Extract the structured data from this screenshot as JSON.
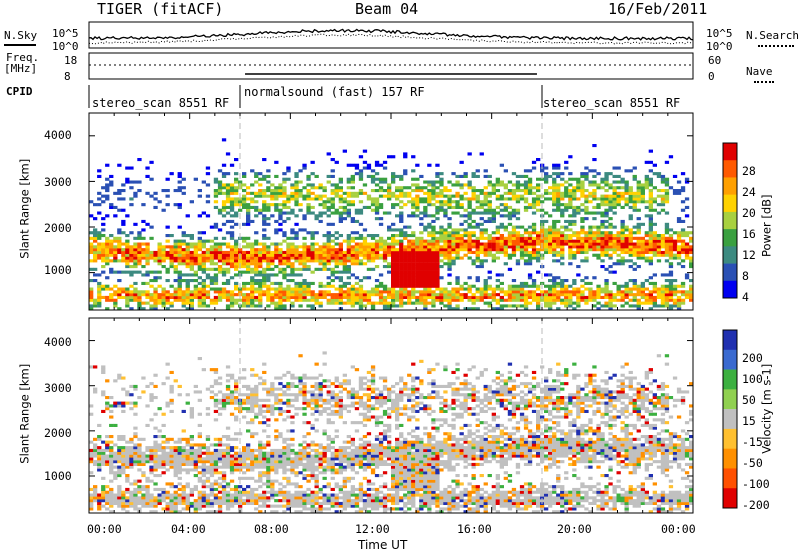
{
  "header": {
    "station": "TIGER (fitACF)",
    "beam": "Beam 04",
    "date": "16/Feb/2011"
  },
  "side_labels": {
    "nsky": "N.Sky",
    "nsearch": "N.Search",
    "freq": "Freq.",
    "freq_unit": "[MHz]",
    "nave": "Nave",
    "cpid": "CPID",
    "nsky_ticks": [
      "10^5",
      "10^0"
    ],
    "nsearch_ticks": [
      "10^5",
      "10^0"
    ],
    "freq_ticks": [
      "18",
      "8"
    ],
    "nave_ticks": [
      "60",
      "0"
    ]
  },
  "cpid_segments": [
    {
      "label": "stereo_scan 8551 RF",
      "start_hour": 0,
      "end_hour": 6
    },
    {
      "label": "normalsound (fast) 157 RF",
      "start_hour": 6,
      "end_hour": 18
    },
    {
      "label": "stereo_scan 8551 RF",
      "start_hour": 18,
      "end_hour": 24
    }
  ],
  "chart_data": [
    {
      "type": "heatmap",
      "name": "power",
      "ylabel": "Slant Range [km]",
      "xlabel": "",
      "xlim": [
        0,
        24
      ],
      "ylim": [
        180,
        4500
      ],
      "yticks": [
        "1000",
        "2000",
        "3000",
        "4000"
      ],
      "colorbar": {
        "label": "Power [dB]",
        "ticks": [
          "28",
          "24",
          "20",
          "16",
          "12",
          "8",
          "4"
        ],
        "colors": [
          "#e00000",
          "#ff5a00",
          "#ffa000",
          "#ffd200",
          "#a8d040",
          "#3aa040",
          "#3c8a80",
          "#2a50b4",
          "#0000f0"
        ]
      }
    },
    {
      "type": "heatmap",
      "name": "velocity",
      "ylabel": "Slant Range [km]",
      "xlabel": "Time UT",
      "xlim": [
        0,
        24
      ],
      "ylim": [
        180,
        4500
      ],
      "yticks": [
        "1000",
        "2000",
        "3000",
        "4000"
      ],
      "xticks": [
        "00:00",
        "04:00",
        "08:00",
        "12:00",
        "16:00",
        "20:00",
        "00:00"
      ],
      "colorbar": {
        "label": "Velocity [m s-1]",
        "ticks": [
          "200",
          "100",
          "50",
          "15",
          "-15",
          "-50",
          "-100",
          "-200"
        ],
        "colors": [
          "#2030b0",
          "#3a6ad0",
          "#3cb040",
          "#90d050",
          "#c0c0c0",
          "#ffc030",
          "#ff9000",
          "#ff5000",
          "#e00000"
        ]
      }
    }
  ]
}
